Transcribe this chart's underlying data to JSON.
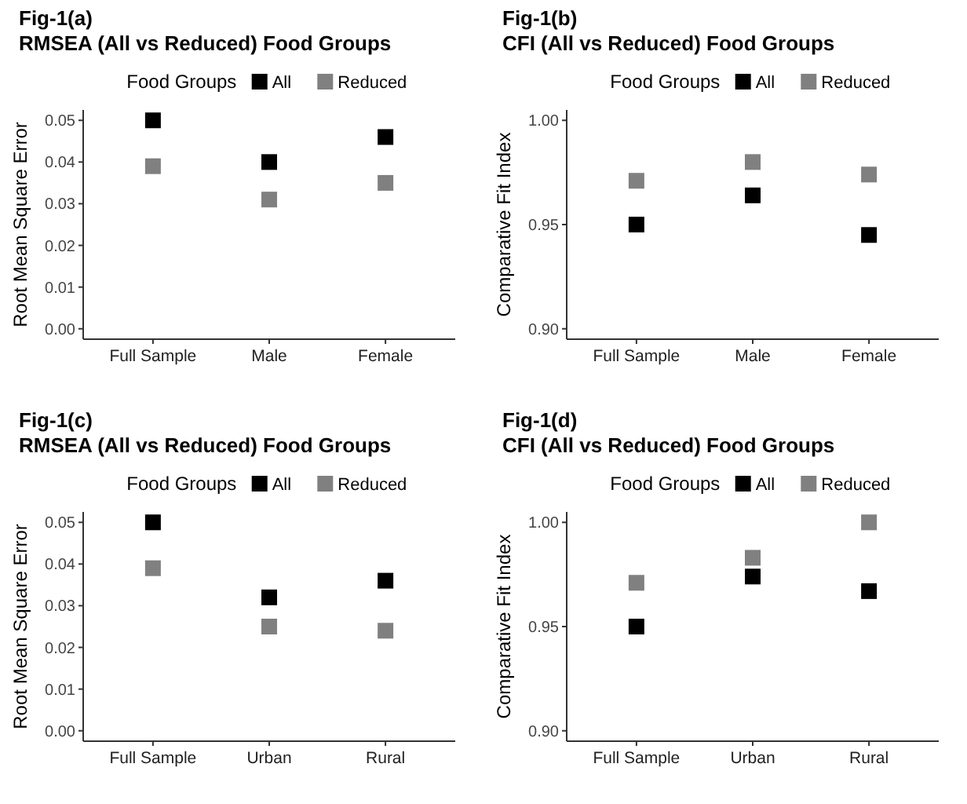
{
  "chart_data": [
    {
      "type": "scatter",
      "title": "Fig-1(a)",
      "subtitle": "RMSEA (All vs Reduced) Food Groups",
      "ylabel": "Root Mean Square Error",
      "legend_title": "Food Groups",
      "legend": "top",
      "marker": "square",
      "grid": false,
      "categories": [
        "Full Sample",
        "Male",
        "Female"
      ],
      "ylim": [
        -0.0025,
        0.0525
      ],
      "yticks": [
        {
          "value": 0,
          "label": "0.00"
        },
        {
          "value": 0.01,
          "label": "0.01"
        },
        {
          "value": 0.02,
          "label": "0.02"
        },
        {
          "value": 0.03,
          "label": "0.03"
        },
        {
          "value": 0.04,
          "label": "0.04"
        },
        {
          "value": 0.05,
          "label": "0.05"
        }
      ],
      "series": [
        {
          "name": "All",
          "color": "#000000",
          "values": [
            0.05,
            0.04,
            0.046
          ]
        },
        {
          "name": "Reduced",
          "color": "#808080",
          "values": [
            0.039,
            0.031,
            0.035
          ]
        }
      ]
    },
    {
      "type": "scatter",
      "title": "Fig-1(b)",
      "subtitle": "CFI (All vs Reduced) Food Groups",
      "ylabel": "Comparative Fit Index",
      "legend_title": "Food Groups",
      "legend": "top",
      "marker": "square",
      "grid": false,
      "categories": [
        "Full Sample",
        "Male",
        "Female"
      ],
      "ylim": [
        0.895,
        1.005
      ],
      "yticks": [
        {
          "value": 0.9,
          "label": "0.90"
        },
        {
          "value": 0.95,
          "label": "0.95"
        },
        {
          "value": 1,
          "label": "1.00"
        }
      ],
      "series": [
        {
          "name": "All",
          "color": "#000000",
          "values": [
            0.95,
            0.964,
            0.945
          ]
        },
        {
          "name": "Reduced",
          "color": "#808080",
          "values": [
            0.971,
            0.98,
            0.974
          ]
        }
      ]
    },
    {
      "type": "scatter",
      "title": "Fig-1(c)",
      "subtitle": "RMSEA (All vs Reduced) Food Groups",
      "ylabel": "Root Mean Square Error",
      "legend_title": "Food Groups",
      "legend": "top",
      "marker": "square",
      "grid": false,
      "categories": [
        "Full Sample",
        "Urban",
        "Rural"
      ],
      "ylim": [
        -0.0025,
        0.0525
      ],
      "yticks": [
        {
          "value": 0,
          "label": "0.00"
        },
        {
          "value": 0.01,
          "label": "0.01"
        },
        {
          "value": 0.02,
          "label": "0.02"
        },
        {
          "value": 0.03,
          "label": "0.03"
        },
        {
          "value": 0.04,
          "label": "0.04"
        },
        {
          "value": 0.05,
          "label": "0.05"
        }
      ],
      "series": [
        {
          "name": "All",
          "color": "#000000",
          "values": [
            0.05,
            0.032,
            0.036
          ]
        },
        {
          "name": "Reduced",
          "color": "#808080",
          "values": [
            0.039,
            0.025,
            0.024
          ]
        }
      ]
    },
    {
      "type": "scatter",
      "title": "Fig-1(d)",
      "subtitle": "CFI (All vs Reduced) Food Groups",
      "ylabel": "Comparative Fit Index",
      "legend_title": "Food Groups",
      "legend": "top",
      "marker": "square",
      "grid": false,
      "categories": [
        "Full Sample",
        "Urban",
        "Rural"
      ],
      "ylim": [
        0.895,
        1.005
      ],
      "yticks": [
        {
          "value": 0.9,
          "label": "0.90"
        },
        {
          "value": 0.95,
          "label": "0.95"
        },
        {
          "value": 1,
          "label": "1.00"
        }
      ],
      "series": [
        {
          "name": "All",
          "color": "#000000",
          "values": [
            0.95,
            0.974,
            0.967
          ]
        },
        {
          "name": "Reduced",
          "color": "#808080",
          "values": [
            0.971,
            0.983,
            1.0
          ]
        }
      ]
    }
  ]
}
